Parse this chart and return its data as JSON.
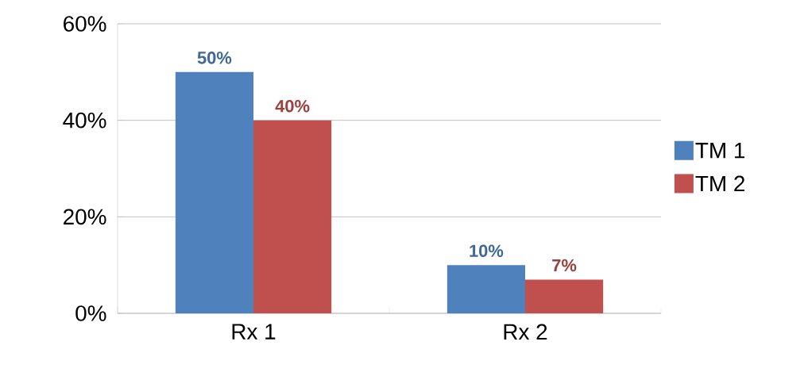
{
  "chart_data": {
    "type": "bar",
    "categories": [
      "Rx 1",
      "Rx 2"
    ],
    "series": [
      {
        "name": "TM 1",
        "color": "#4f81bd",
        "values": [
          50,
          10
        ],
        "value_labels": [
          "50%",
          "10%"
        ]
      },
      {
        "name": "TM 2",
        "color": "#c0504d",
        "values": [
          40,
          7
        ],
        "value_labels": [
          "40%",
          "7%"
        ]
      }
    ],
    "ylim": [
      0,
      60
    ],
    "yticks": [
      {
        "value": 0,
        "label": "0%"
      },
      {
        "value": 20,
        "label": "20%"
      },
      {
        "value": 40,
        "label": "40%"
      },
      {
        "value": 60,
        "label": "60%"
      }
    ],
    "grid": "y",
    "legend": "right"
  }
}
